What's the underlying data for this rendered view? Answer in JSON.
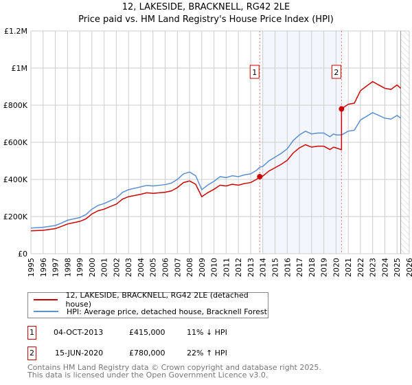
{
  "chart_data": {
    "type": "line",
    "title": "12, LAKESIDE, BRACKNELL, RG42 2LE",
    "subtitle": "Price paid vs. HM Land Registry's House Price Index (HPI)",
    "xlim": [
      1995,
      2026
    ],
    "ylim": [
      0,
      1200000
    ],
    "yticks": [
      {
        "v": 0,
        "label": "£0"
      },
      {
        "v": 200000,
        "label": "£200K"
      },
      {
        "v": 400000,
        "label": "£400K"
      },
      {
        "v": 600000,
        "label": "£600K"
      },
      {
        "v": 800000,
        "label": "£800K"
      },
      {
        "v": 1000000,
        "label": "£1M"
      },
      {
        "v": 1200000,
        "label": "£1.2M"
      }
    ],
    "xticks": [
      "1995",
      "1996",
      "1997",
      "1998",
      "1999",
      "2000",
      "2001",
      "2002",
      "2003",
      "2004",
      "2005",
      "2006",
      "2007",
      "2008",
      "2009",
      "2010",
      "2011",
      "2012",
      "2013",
      "2014",
      "2015",
      "2016",
      "2017",
      "2018",
      "2019",
      "2020",
      "2021",
      "2022",
      "2023",
      "2024",
      "2025",
      "2026"
    ],
    "grid": true,
    "colors": {
      "property": "#cc0000",
      "hpi": "#5b8fd0"
    },
    "x": [
      1995,
      1996,
      1997,
      1997.5,
      1998,
      1999,
      1999.5,
      2000,
      2000.5,
      2001,
      2001.5,
      2002,
      2002.5,
      2003,
      2004,
      2004.5,
      2005,
      2006,
      2006.5,
      2007,
      2007.5,
      2008,
      2008.5,
      2009,
      2009.5,
      2010,
      2010.5,
      2011,
      2011.5,
      2012,
      2012.5,
      2013,
      2013.5,
      2013.75,
      2014,
      2014.5,
      2015,
      2015.5,
      2016,
      2016.5,
      2017,
      2017.5,
      2018,
      2018.5,
      2019,
      2019.5,
      2019.8,
      2020,
      2020.45,
      2021,
      2021.5,
      2022,
      2022.5,
      2023,
      2023.5,
      2024,
      2024.5,
      2025,
      2025.3
    ],
    "series": [
      {
        "name": "12, LAKESIDE, BRACKNELL, RG42 2LE (detached house)",
        "key": "property",
        "values": [
          123,
          126,
          135,
          147,
          160,
          174,
          187,
          214,
          231,
          240,
          254,
          267,
          294,
          307,
          320,
          328,
          325,
          331,
          338,
          356,
          383,
          392,
          374,
          307,
          329,
          347,
          369,
          365,
          374,
          369,
          378,
          383,
          401,
          415,
          418,
          445,
          463,
          481,
          503,
          543,
          570,
          587,
          574,
          579,
          579,
          561,
          574,
          570,
          780,
          805,
          811,
          878,
          903,
          927,
          909,
          891,
          885,
          909,
          891
        ],
        "jump_at": 2020.45,
        "jump_from": 560
      },
      {
        "name": "HPI: Average price, detached house, Bracknell Forest",
        "key": "hpi",
        "values": [
          138,
          142,
          152,
          165,
          180,
          195,
          210,
          240,
          260,
          270,
          285,
          300,
          330,
          345,
          360,
          368,
          365,
          372,
          380,
          400,
          430,
          440,
          420,
          345,
          370,
          390,
          415,
          410,
          420,
          415,
          425,
          430,
          450,
          466,
          470,
          500,
          520,
          540,
          565,
          610,
          640,
          660,
          645,
          650,
          650,
          630,
          645,
          640,
          640,
          660,
          665,
          720,
          740,
          760,
          745,
          730,
          725,
          745,
          730
        ]
      }
    ],
    "value_unit": "thousands GBP",
    "shaded_range": [
      2013.75,
      2020.45
    ],
    "hatched_from": 2025.3,
    "annotations": [
      {
        "label": "1",
        "x": 2013.75,
        "value": 415000
      },
      {
        "label": "2",
        "x": 2020.45,
        "value": 780000
      }
    ]
  },
  "legend": {
    "property": "12, LAKESIDE, BRACKNELL, RG42 2LE (detached house)",
    "hpi": "HPI: Average price, detached house, Bracknell Forest"
  },
  "transactions": [
    {
      "num": "1",
      "date": "04-OCT-2013",
      "price": "£415,000",
      "hpi": "11% ↓ HPI"
    },
    {
      "num": "2",
      "date": "15-JUN-2020",
      "price": "£780,000",
      "hpi": "22% ↑ HPI"
    }
  ],
  "footer": {
    "line1": "Contains HM Land Registry data © Crown copyright and database right 2025.",
    "line2": "This data is licensed under the Open Government Licence v3.0."
  }
}
